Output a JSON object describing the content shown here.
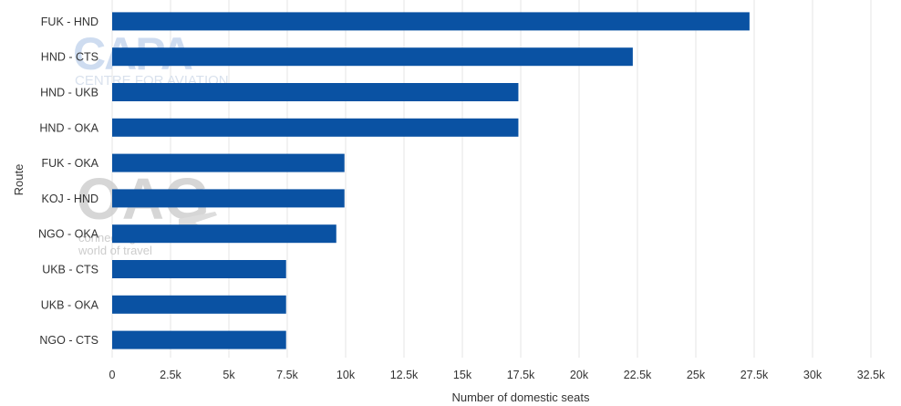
{
  "chart_data": {
    "type": "bar",
    "orientation": "horizontal",
    "title": "",
    "xlabel": "Number of domestic seats",
    "ylabel": "Route",
    "categories": [
      "FUK - HND",
      "HND - CTS",
      "HND - UKB",
      "HND - OKA",
      "FUK - OKA",
      "KOJ - HND",
      "NGO - OKA",
      "UKB - CTS",
      "UKB - OKA",
      "NGO - CTS"
    ],
    "values": [
      27300,
      22300,
      17400,
      17400,
      9950,
      9950,
      9600,
      7450,
      7450,
      7450
    ],
    "xlim": [
      0,
      32500
    ],
    "xticks": [
      0,
      2500,
      5000,
      7500,
      10000,
      12500,
      15000,
      17500,
      20000,
      22500,
      25000,
      27500,
      30000,
      32500
    ],
    "xtick_labels": [
      "0",
      "2.5k",
      "5k",
      "7.5k",
      "10k",
      "12.5k",
      "15k",
      "17.5k",
      "20k",
      "22.5k",
      "25k",
      "27.5k",
      "30k",
      "32.5k"
    ],
    "grid": true,
    "bar_color": "#0a52a3"
  },
  "watermarks": {
    "capa_logo": "CAPA",
    "capa_sub": "CENTRE FOR AVIATION",
    "oag_logo": "OAG",
    "oag_sub1": "connecting the",
    "oag_sub2": "world of travel"
  }
}
